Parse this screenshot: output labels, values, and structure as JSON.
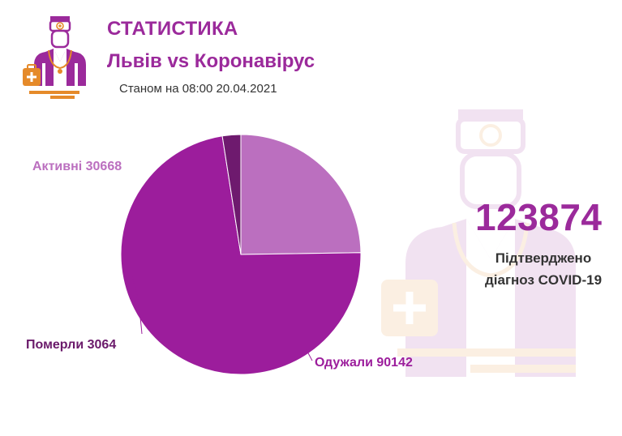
{
  "header": {
    "title": "СТАТИСТИКА",
    "subtitle": "Львів vs Коронавірус",
    "date": "Станом на 08:00 20.04.2021"
  },
  "summary": {
    "total": "123874",
    "label_line1": "Підтверджено",
    "label_line2": "діагноз COVID-19"
  },
  "icons": {
    "logo": "doctor-icon",
    "watermark": "doctor-icon"
  },
  "colors": {
    "brand": "#9b2a9b",
    "recovered": "#9c1d9c",
    "active": "#bb6fbf",
    "deaths": "#6e1a6e",
    "label_dark": "#6a1a6a",
    "label_light": "#bb6fbf",
    "label_mid": "#9c1d9c"
  },
  "chart_data": {
    "type": "pie",
    "slices": [
      {
        "label": "Активні 30668",
        "value": 30668,
        "color": "#bb6fbf"
      },
      {
        "label": "Одужали 90142",
        "value": 90142,
        "color": "#9c1d9c"
      },
      {
        "label": "Померли 3064",
        "value": 3064,
        "color": "#6e1a6e"
      }
    ]
  }
}
